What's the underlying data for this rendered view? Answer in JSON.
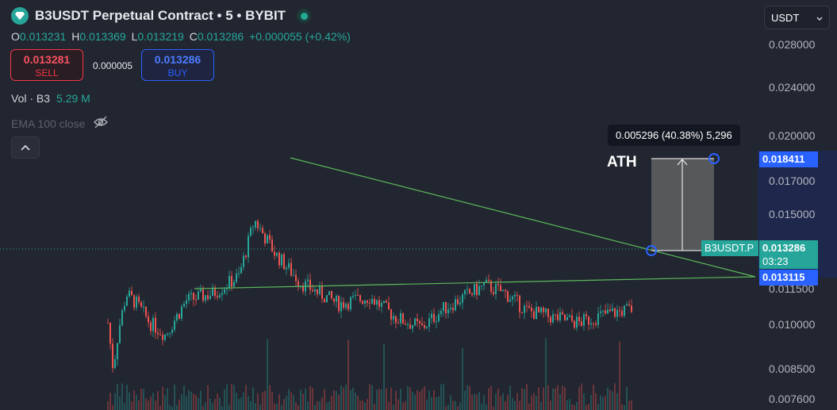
{
  "header": {
    "title": "B3USDT Perpetual Contract • 5 • BYBIT",
    "logo_icon": "diamond-icon",
    "status_icon": "market-open-dot-icon"
  },
  "ohlc": {
    "o_label": "O",
    "o": "0.013231",
    "h_label": "H",
    "h": "0.013369",
    "l_label": "L",
    "l": "0.013219",
    "c_label": "C",
    "c": "0.013286",
    "change": "+0.000055 (+0.42%)"
  },
  "trade": {
    "sell_price": "0.013281",
    "sell_label": "SELL",
    "spread": "0.000005",
    "buy_price": "0.013286",
    "buy_label": "BUY"
  },
  "indicators": {
    "vol_label": "Vol · B3",
    "vol_value": "5.29 M",
    "ema_label": "EMA 100 close",
    "ema_icon": "eye-off-icon",
    "collapse_icon": "chevron-up-icon"
  },
  "currency_select": {
    "value": "USDT",
    "icon": "chevron-down-icon"
  },
  "price_axis": {
    "labels": [
      "0.028000",
      "0.024000",
      "0.020000",
      "0.017000",
      "0.015000",
      "0.011500",
      "0.010000",
      "0.008500",
      "0.007600"
    ]
  },
  "tags": {
    "measure_top": "0.018411",
    "symbol": "B3USDT.P",
    "last_price": "0.013286",
    "countdown": "03:23",
    "triangle_low": "0.013115"
  },
  "measure": {
    "text": "0.005296 (40.38%) 5,296"
  },
  "annotation": {
    "ath": "ATH"
  },
  "colors": {
    "background": "#222630",
    "up": "#26a69a",
    "down": "#ef5350",
    "trendline": "#5cb85c",
    "accent_blue": "#2962ff"
  },
  "chart_data": {
    "type": "candlestick",
    "symbol": "B3USDT",
    "interval": "5",
    "ylim": [
      0.0074,
      0.0295
    ],
    "y_ticks": [
      0.028,
      0.024,
      0.02,
      0.017,
      0.015,
      0.0115,
      0.01,
      0.0085,
      0.0076
    ],
    "price_path_approx": [
      {
        "t": 0.0,
        "price": 0.0125
      },
      {
        "t": 0.01,
        "price": 0.0098
      },
      {
        "t": 0.02,
        "price": 0.012
      },
      {
        "t": 0.035,
        "price": 0.0142
      },
      {
        "t": 0.055,
        "price": 0.0136
      },
      {
        "t": 0.08,
        "price": 0.0125
      },
      {
        "t": 0.11,
        "price": 0.0118
      },
      {
        "t": 0.15,
        "price": 0.0138
      },
      {
        "t": 0.2,
        "price": 0.0142
      },
      {
        "t": 0.25,
        "price": 0.0152
      },
      {
        "t": 0.28,
        "price": 0.0185
      },
      {
        "t": 0.32,
        "price": 0.0165
      },
      {
        "t": 0.37,
        "price": 0.0148
      },
      {
        "t": 0.44,
        "price": 0.0136
      },
      {
        "t": 0.5,
        "price": 0.014
      },
      {
        "t": 0.55,
        "price": 0.0128
      },
      {
        "t": 0.6,
        "price": 0.0122
      },
      {
        "t": 0.64,
        "price": 0.0133
      },
      {
        "t": 0.68,
        "price": 0.014
      },
      {
        "t": 0.72,
        "price": 0.0147
      },
      {
        "t": 0.76,
        "price": 0.0142
      },
      {
        "t": 0.8,
        "price": 0.0132
      },
      {
        "t": 0.85,
        "price": 0.0128
      },
      {
        "t": 0.9,
        "price": 0.0125
      },
      {
        "t": 0.95,
        "price": 0.013
      },
      {
        "t": 1.0,
        "price": 0.013286
      }
    ],
    "trendlines": [
      {
        "name": "upper",
        "from_price": 0.0185,
        "to_price": 0.01311
      },
      {
        "name": "lower",
        "from_price": 0.01215,
        "to_price": 0.01311
      }
    ],
    "measure_range": {
      "from_price": 0.013115,
      "to_price": 0.018411,
      "delta": 0.005296,
      "percent": 40.38,
      "ticks": 5296
    }
  }
}
